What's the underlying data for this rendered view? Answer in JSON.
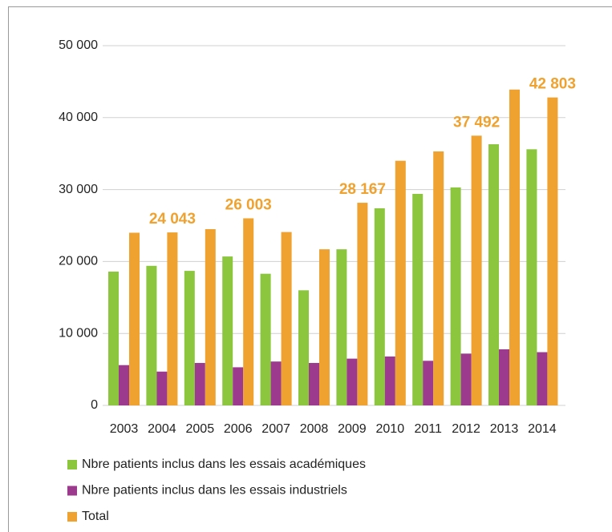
{
  "chart_data": {
    "type": "bar",
    "categories": [
      "2003",
      "2004",
      "2005",
      "2006",
      "2007",
      "2008",
      "2009",
      "2010",
      "2011",
      "2012",
      "2013",
      "2014"
    ],
    "series": [
      {
        "name": "Nbre patients inclus dans les essais académiques",
        "color": "#8cc63e",
        "values": [
          18600,
          19400,
          18700,
          20700,
          18300,
          16000,
          21700,
          27400,
          29400,
          30300,
          36300,
          35600
        ]
      },
      {
        "name": "Nbre patients inclus dans les essais industriels",
        "color": "#9c3b8e",
        "values": [
          5600,
          4700,
          5900,
          5300,
          6100,
          5900,
          6500,
          6800,
          6200,
          7200,
          7800,
          7400
        ]
      },
      {
        "name": "Total",
        "color": "#efa22f",
        "values": [
          24000,
          24043,
          24500,
          26003,
          24100,
          21700,
          28167,
          34000,
          35300,
          37492,
          43900,
          42803
        ],
        "value_labels": [
          null,
          "24 043",
          null,
          "26 003",
          null,
          null,
          "28 167",
          null,
          null,
          "37 492",
          null,
          "42 803"
        ]
      }
    ],
    "ylim": [
      0,
      50000
    ],
    "yticks": [
      0,
      {
        "value": 10000,
        "label": "10 000"
      },
      {
        "value": 20000,
        "label": "20 000"
      },
      {
        "value": 30000,
        "label": "30 000"
      },
      {
        "value": 40000,
        "label": "40 000"
      },
      {
        "value": 50000,
        "label": "50 000"
      }
    ],
    "grid": true
  }
}
